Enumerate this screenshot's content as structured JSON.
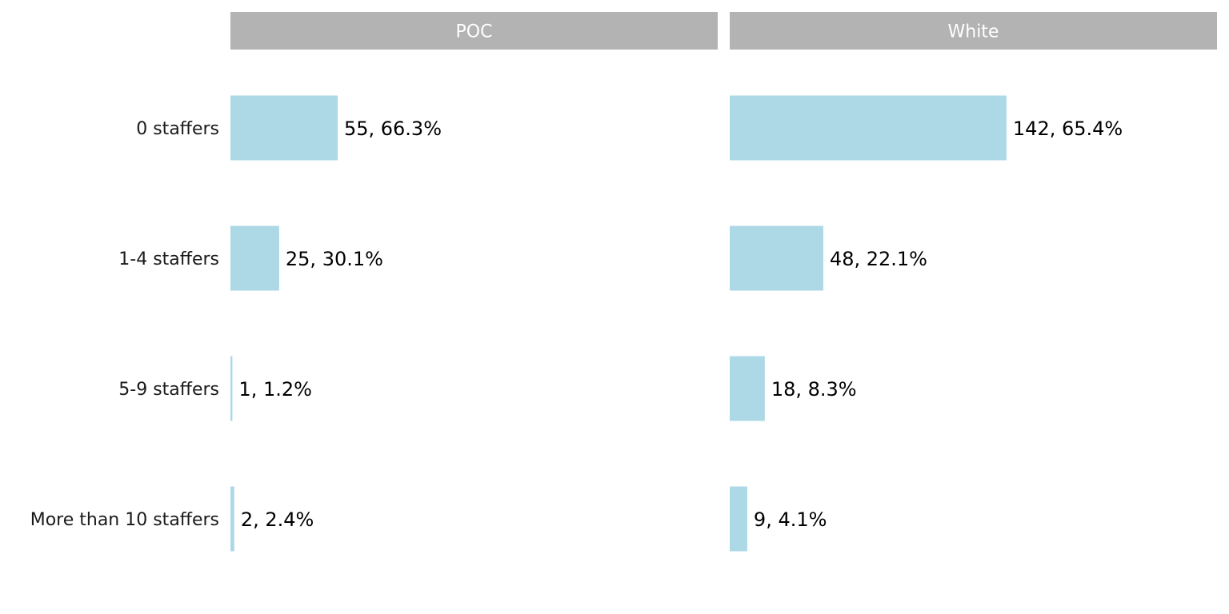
{
  "chart_data": {
    "type": "bar",
    "orientation": "horizontal",
    "facets": [
      "POC",
      "White"
    ],
    "categories": [
      "0 staffers",
      "1-4 staffers",
      "5-9 staffers",
      "More than 10 staffers"
    ],
    "series": [
      {
        "values": [
          55,
          25,
          1,
          2
        ],
        "labels": [
          "55, 66.3%",
          "25, 30.1%",
          "1, 1.2%",
          "2, 2.4%"
        ]
      },
      {
        "values": [
          142,
          48,
          18,
          9
        ],
        "labels": [
          "142, 65.4%",
          "48, 22.1%",
          "18, 8.3%",
          "9, 4.1%"
        ]
      }
    ],
    "xlim": [
      0,
      250
    ],
    "bar_color": "#add8e6",
    "strip_color": "#b3b3b3",
    "grid": false,
    "legend": "none"
  }
}
